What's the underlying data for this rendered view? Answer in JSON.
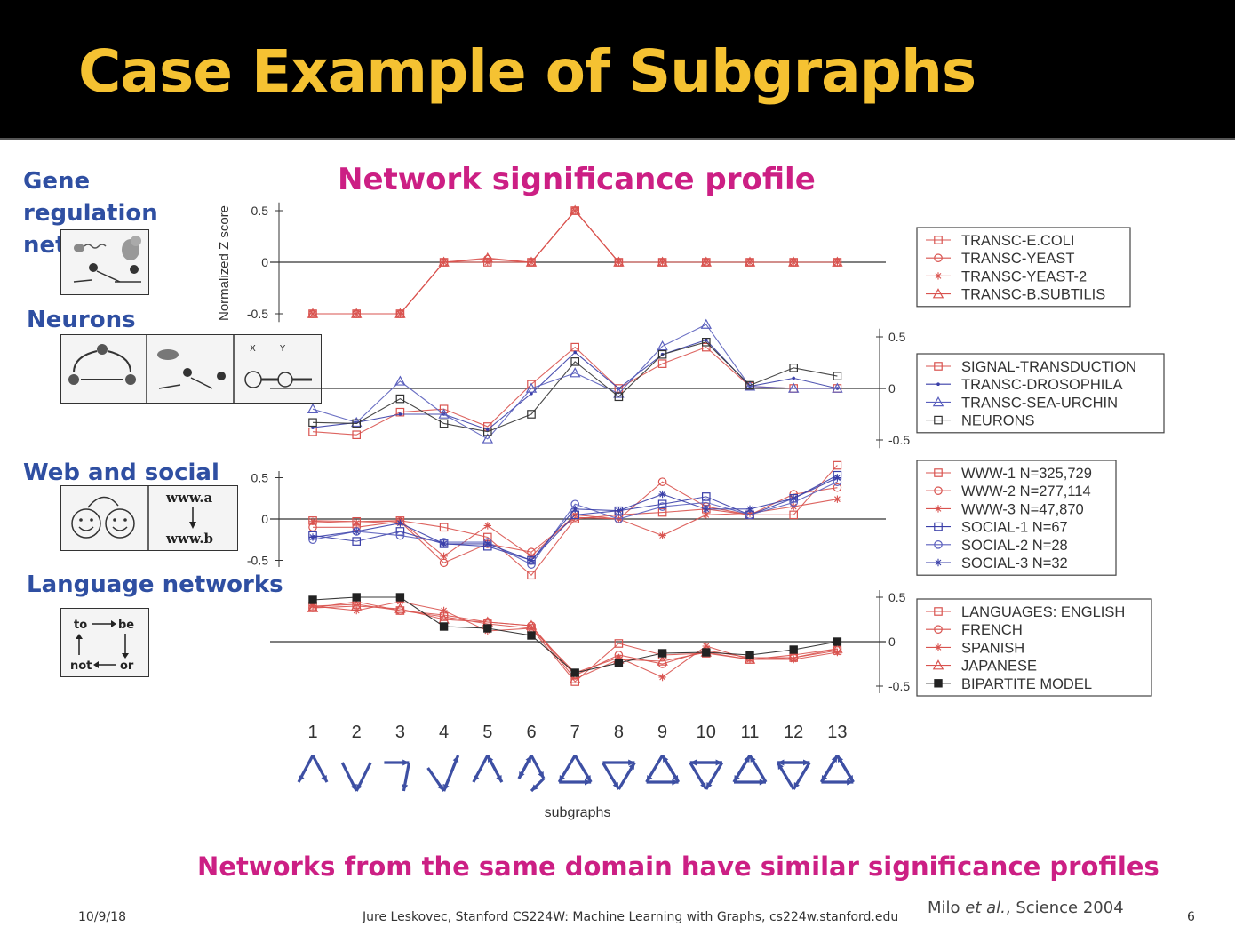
{
  "slide": {
    "title": "Case Example of Subgraphs",
    "heading": "Network significance profile",
    "footer_note": "Networks from the same domain have similar significance profiles",
    "date": "10/9/18",
    "credit": "Jure Leskovec, Stanford CS224W: Machine Learning with Graphs, cs224w.stanford.edu",
    "citation_pre": "Milo ",
    "citation_em": "et al.",
    "citation_post": ", Science 2004",
    "page": "6"
  },
  "domains": {
    "gene": "Gene regulation networks",
    "neurons": "Neurons",
    "web": "Web and social",
    "language": "Language networks"
  },
  "icons": {
    "www_a": "www.a",
    "www_b": "www.b",
    "to": "to",
    "be": "be",
    "not": "not",
    "or": "or",
    "x": "X",
    "y": "Y"
  },
  "chart_data": {
    "type": "line",
    "ylabel": "Normalized Z score",
    "xlabel": "subgraphs",
    "categories": [
      "1",
      "2",
      "3",
      "4",
      "5",
      "6",
      "7",
      "8",
      "9",
      "10",
      "11",
      "12",
      "13"
    ],
    "panels": [
      {
        "yticks": [
          0.5,
          0,
          -0.5
        ],
        "ytick_labels": [
          "0.5",
          "0",
          "-0.5"
        ],
        "ylim": [
          -0.6,
          0.6
        ],
        "axis_side": "left",
        "series": [
          {
            "name": "TRANSC-E.COLI",
            "marker": "square",
            "color": "#d9534f",
            "values": [
              -0.5,
              -0.5,
              -0.5,
              0,
              0,
              0,
              0.5,
              0,
              0,
              0,
              0,
              0,
              0
            ]
          },
          {
            "name": "TRANSC-YEAST",
            "marker": "circle",
            "color": "#d9534f",
            "values": [
              -0.5,
              -0.5,
              -0.5,
              0,
              0.03,
              0,
              0.5,
              0,
              0,
              0,
              0,
              0,
              0
            ]
          },
          {
            "name": "TRANSC-YEAST-2",
            "marker": "star",
            "color": "#d9534f",
            "values": [
              -0.5,
              -0.5,
              -0.5,
              0,
              0,
              0,
              0.5,
              0,
              0,
              0,
              0,
              0,
              0
            ]
          },
          {
            "name": "TRANSC-B.SUBTILIS",
            "marker": "triangle",
            "color": "#d9534f",
            "values": [
              -0.5,
              -0.5,
              -0.5,
              0,
              0.04,
              0,
              0.5,
              0,
              0,
              0,
              0,
              0,
              0
            ]
          }
        ]
      },
      {
        "yticks": [
          0.5,
          0,
          -0.5
        ],
        "ytick_labels": [
          "0.5",
          "0",
          "-0.5"
        ],
        "ylim": [
          -0.6,
          0.6
        ],
        "axis_side": "right",
        "series": [
          {
            "name": "SIGNAL-TRANSDUCTION",
            "marker": "square",
            "color": "#d9534f",
            "values": [
              -0.42,
              -0.45,
              -0.23,
              -0.2,
              -0.37,
              0.04,
              0.4,
              0.0,
              0.24,
              0.4,
              0.02,
              0.0,
              0.0
            ]
          },
          {
            "name": "TRANSC-DROSOPHILA",
            "marker": "dot",
            "color": "#3a3fa8",
            "values": [
              -0.38,
              -0.33,
              -0.25,
              -0.25,
              -0.4,
              -0.05,
              0.35,
              0.0,
              0.33,
              0.47,
              0.02,
              0.1,
              0.0
            ]
          },
          {
            "name": "TRANSC-SEA-URCHIN",
            "marker": "triangle",
            "color": "#5a5fbd",
            "values": [
              -0.2,
              -0.33,
              0.07,
              -0.25,
              -0.49,
              0.0,
              0.15,
              -0.05,
              0.41,
              0.62,
              0.02,
              0.0,
              0.0
            ]
          },
          {
            "name": "NEURONS",
            "marker": "square",
            "color": "#333333",
            "values": [
              -0.33,
              -0.34,
              -0.1,
              -0.34,
              -0.42,
              -0.25,
              0.26,
              -0.08,
              0.33,
              0.45,
              0.03,
              0.2,
              0.12
            ]
          }
        ]
      },
      {
        "yticks": [
          0.5,
          0,
          -0.5
        ],
        "ytick_labels": [
          "0.5",
          "0",
          "-0.5"
        ],
        "ylim": [
          -0.6,
          0.6
        ],
        "axis_side": "left",
        "series": [
          {
            "name": "WWW-1 N=325,729",
            "marker": "square",
            "color": "#d9534f",
            "values": [
              -0.02,
              -0.03,
              -0.02,
              -0.1,
              -0.22,
              -0.68,
              0.0,
              0.05,
              0.08,
              0.12,
              0.05,
              0.05,
              0.65
            ]
          },
          {
            "name": "WWW-2 N=277,114",
            "marker": "circle",
            "color": "#d9534f",
            "values": [
              -0.1,
              -0.1,
              -0.03,
              -0.53,
              -0.3,
              -0.4,
              0.02,
              0.0,
              0.45,
              0.15,
              0.05,
              0.3,
              0.38
            ]
          },
          {
            "name": "WWW-3 N=47,870",
            "marker": "star",
            "color": "#d9534f",
            "values": [
              -0.03,
              -0.05,
              -0.02,
              -0.45,
              -0.08,
              -0.45,
              0.05,
              0.0,
              -0.2,
              0.05,
              0.07,
              0.15,
              0.24
            ]
          },
          {
            "name": "SOCIAL-1 N=67",
            "marker": "square",
            "color": "#3a3fa8",
            "values": [
              -0.2,
              -0.27,
              -0.15,
              -0.3,
              -0.33,
              -0.5,
              0.05,
              0.1,
              0.18,
              0.27,
              0.05,
              0.25,
              0.53
            ]
          },
          {
            "name": "SOCIAL-2 N=28",
            "marker": "circle",
            "color": "#5a5fbd",
            "values": [
              -0.25,
              -0.15,
              -0.2,
              -0.28,
              -0.28,
              -0.55,
              0.18,
              0.0,
              0.15,
              0.2,
              0.05,
              0.2,
              0.45
            ]
          },
          {
            "name": "SOCIAL-3 N=32",
            "marker": "star",
            "color": "#3a3fa8",
            "values": [
              -0.22,
              -0.15,
              -0.05,
              -0.3,
              -0.3,
              -0.5,
              0.12,
              0.1,
              0.3,
              0.12,
              0.12,
              0.25,
              0.5
            ]
          }
        ]
      },
      {
        "yticks": [
          0.5,
          0,
          -0.5
        ],
        "ytick_labels": [
          "0.5",
          "0",
          "-0.5"
        ],
        "ylim": [
          -0.6,
          0.6
        ],
        "axis_side": "right",
        "series": [
          {
            "name": "LANGUAGES: ENGLISH",
            "marker": "square",
            "color": "#d9534f",
            "values": [
              0.4,
              0.42,
              0.35,
              0.28,
              0.2,
              0.15,
              -0.45,
              -0.02,
              -0.15,
              -0.13,
              -0.2,
              -0.18,
              -0.1
            ]
          },
          {
            "name": "FRENCH",
            "marker": "circle",
            "color": "#d9534f",
            "values": [
              0.38,
              0.45,
              0.35,
              0.3,
              0.22,
              0.18,
              -0.38,
              -0.15,
              -0.25,
              -0.1,
              -0.18,
              -0.18,
              -0.08
            ]
          },
          {
            "name": "SPANISH",
            "marker": "star",
            "color": "#d9534f",
            "values": [
              0.4,
              0.35,
              0.45,
              0.35,
              0.12,
              0.15,
              -0.35,
              -0.18,
              -0.4,
              -0.05,
              -0.2,
              -0.2,
              -0.12
            ]
          },
          {
            "name": "JAPANESE",
            "marker": "triangle",
            "color": "#d9534f",
            "values": [
              0.38,
              0.4,
              0.37,
              0.25,
              0.22,
              0.18,
              -0.42,
              -0.2,
              -0.22,
              -0.12,
              -0.2,
              -0.15,
              -0.08
            ]
          },
          {
            "name": "BIPARTITE MODEL",
            "marker": "filled-square",
            "color": "#222222",
            "values": [
              0.47,
              0.5,
              0.5,
              0.17,
              0.15,
              0.07,
              -0.35,
              -0.24,
              -0.13,
              -0.12,
              -0.15,
              -0.09,
              0.0
            ]
          }
        ]
      }
    ]
  }
}
